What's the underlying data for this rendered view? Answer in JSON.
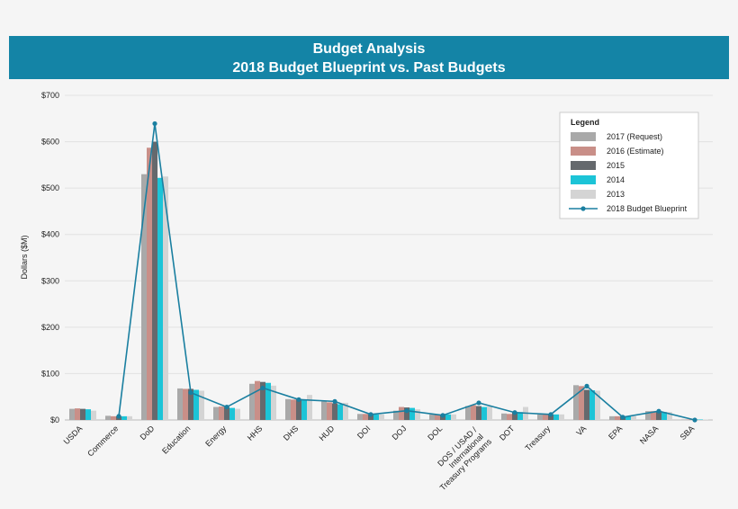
{
  "chart_data": {
    "type": "bar",
    "title": "Budget Analysis",
    "subtitle": "2018 Budget Blueprint vs. Past Budgets",
    "y_label": "Dollars ($M)",
    "legend_title": "Legend",
    "categories": [
      "USDA",
      "Commerce",
      "DoD",
      "Education",
      "Energy",
      "HHS",
      "DHS",
      "HUD",
      "DOI",
      "DOJ",
      "DOL",
      "DOS / USAD /\nInternational\nTreasury Programs",
      "DOT",
      "Treasury",
      "VA",
      "EPA",
      "NASA",
      "SBA"
    ],
    "series": [
      {
        "name": "2017 (Request)",
        "color": "#a9a9a9",
        "values": [
          24,
          9,
          530,
          68,
          28,
          78,
          45,
          40,
          13,
          20,
          12,
          30,
          14,
          12,
          75,
          8,
          19,
          1
        ]
      },
      {
        "name": "2016 (Estimate)",
        "color": "#c98f88",
        "values": [
          25,
          8,
          587,
          67,
          29,
          84,
          44,
          38,
          13,
          28,
          12,
          32,
          13,
          12,
          73,
          8,
          19,
          1
        ]
      },
      {
        "name": "2015",
        "color": "#65696d",
        "values": [
          24,
          8,
          600,
          67,
          28,
          82,
          44,
          36,
          12,
          27,
          12,
          30,
          17,
          12,
          65,
          8,
          18,
          1
        ]
      },
      {
        "name": "2014",
        "color": "#1cc4d7",
        "values": [
          23,
          8,
          522,
          65,
          26,
          80,
          43,
          34,
          12,
          26,
          12,
          28,
          17,
          12,
          64,
          8,
          17,
          1
        ]
      },
      {
        "name": "2013",
        "color": "#d4d4d4",
        "values": [
          20,
          8,
          525,
          63,
          24,
          74,
          54,
          37,
          12,
          23,
          12,
          29,
          28,
          12,
          63,
          8,
          17,
          1
        ]
      },
      {
        "name": "2018 Budget Blueprint",
        "type": "line",
        "color": "#1a7fa0",
        "values": [
          null,
          8,
          639,
          59,
          28,
          69,
          44,
          40,
          12,
          20,
          10,
          37,
          16,
          12,
          73,
          6,
          19,
          0
        ]
      }
    ],
    "ylim": [
      0,
      700
    ],
    "yticks": [
      {
        "value": 0,
        "label": "$0"
      },
      {
        "value": 100,
        "label": "$100"
      },
      {
        "value": 200,
        "label": "$200"
      },
      {
        "value": 300,
        "label": "$300"
      },
      {
        "value": 400,
        "label": "$400"
      },
      {
        "value": 500,
        "label": "$500"
      },
      {
        "value": 600,
        "label": "$600"
      },
      {
        "value": 700,
        "label": "$700"
      }
    ],
    "grid": true,
    "legend": "upper right"
  }
}
